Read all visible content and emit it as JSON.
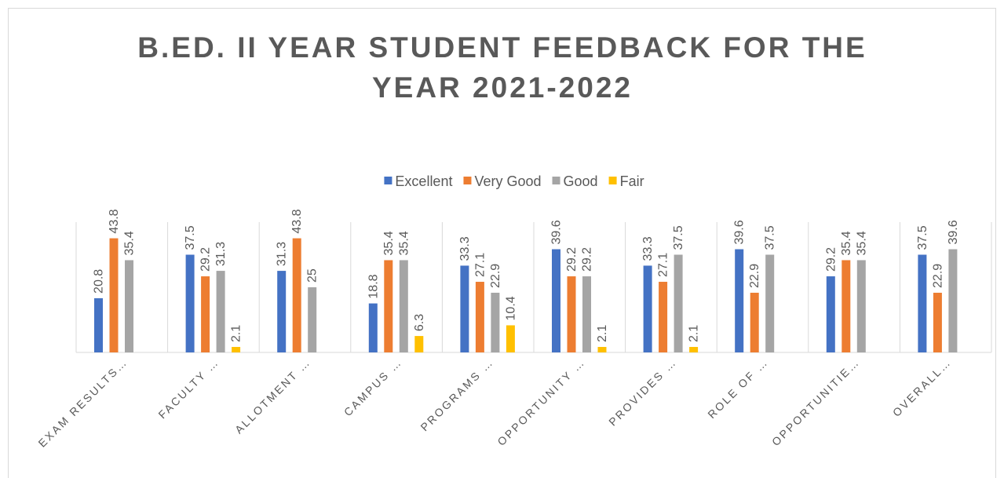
{
  "chart_data": {
    "type": "bar",
    "title": "B.ED. II YEAR STUDENT FEEDBACK FOR THE YEAR 2021-2022",
    "categories": [
      "EXAM RESULTS…",
      "FACULTY …",
      "ALLOTMENT …",
      "CAMPUS …",
      "PROGRAMS …",
      "OPPORTUNITY …",
      "PROVIDES …",
      "ROLE OF …",
      "OPPORTUNITIE…",
      "OVERALL…"
    ],
    "series": [
      {
        "name": "Excellent",
        "color": "#4472c4",
        "values": [
          20.8,
          37.5,
          31.3,
          18.8,
          33.3,
          39.6,
          33.3,
          39.6,
          29.2,
          37.5
        ]
      },
      {
        "name": "Very Good",
        "color": "#ed7d31",
        "values": [
          43.8,
          29.2,
          43.8,
          35.4,
          27.1,
          29.2,
          27.1,
          22.9,
          35.4,
          22.9
        ]
      },
      {
        "name": "Good",
        "color": "#a5a5a5",
        "values": [
          35.4,
          31.3,
          25,
          35.4,
          22.9,
          29.2,
          37.5,
          37.5,
          35.4,
          39.6
        ]
      },
      {
        "name": "Fair",
        "color": "#ffc000",
        "values": [
          null,
          2.1,
          null,
          6.3,
          10.4,
          2.1,
          2.1,
          null,
          null,
          null
        ]
      }
    ],
    "ylim": [
      0,
      50
    ],
    "legend": "top"
  }
}
